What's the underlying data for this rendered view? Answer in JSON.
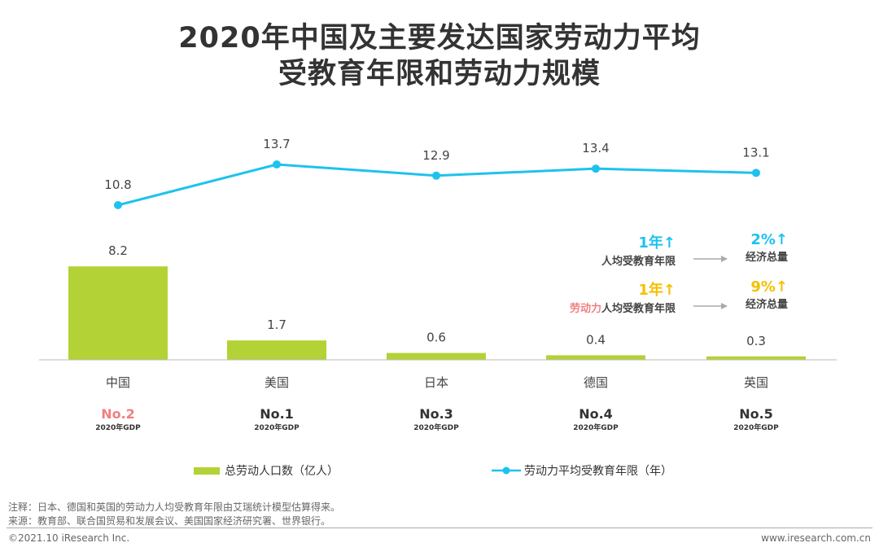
{
  "title_line1": "2020年中国及主要发达国家劳动力平均",
  "title_line2": "受教育年限和劳动力规模",
  "chart_data": {
    "type": "bar+line",
    "categories": [
      "中国",
      "美国",
      "日本",
      "德国",
      "英国"
    ],
    "series": [
      {
        "name": "总劳动人口数（亿人）",
        "type": "bar",
        "values": [
          8.2,
          1.7,
          0.6,
          0.4,
          0.3
        ],
        "color": "#b3d235"
      },
      {
        "name": "劳动力平均受教育年限（年）",
        "type": "line",
        "values": [
          10.8,
          13.7,
          12.9,
          13.4,
          13.1
        ],
        "color": "#1ec2ee"
      }
    ],
    "gdp_rank": [
      "No.2",
      "No.1",
      "No.3",
      "No.4",
      "No.5"
    ],
    "gdp_label": "2020年GDP",
    "rank_colors": {
      "china": "#f08080",
      "others": "#333333"
    },
    "legend_position": "bottom",
    "grid": false
  },
  "annotations": {
    "row1": {
      "left_big": "1年↑",
      "left_text": "人均受教育年限",
      "right_big": "2%↑",
      "right_text": "经济总量",
      "color": "#1ec2ee"
    },
    "row2": {
      "left_big": "1年↑",
      "left_prefix": "劳动力",
      "left_text": "人均受教育年限",
      "right_big": "9%↑",
      "right_text": "经济总量",
      "color": "#f5c000",
      "prefix_color": "#f08080"
    }
  },
  "notes": {
    "note": "注释：日本、德国和英国的劳动力人均受教育年限由艾瑞统计模型估算得来。",
    "source": "来源：教育部、联合国贸易和发展会议、美国国家经济研究署、世界银行。"
  },
  "footer": {
    "left": "©2021.10 iResearch Inc.",
    "right": "www.iresearch.com.cn"
  }
}
